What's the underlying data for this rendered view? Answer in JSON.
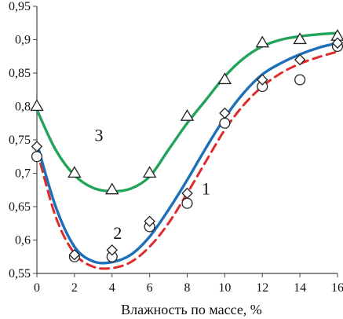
{
  "chart_data": {
    "type": "scatter",
    "xlabel": "Влажность по массе, %",
    "ylabel": "",
    "xlim": [
      0,
      16
    ],
    "ylim": [
      0.55,
      0.95
    ],
    "x_ticks": [
      "0",
      "2",
      "4",
      "6",
      "8",
      "10",
      "12",
      "14",
      "16"
    ],
    "y_ticks": [
      "0,55",
      "0,6",
      "0,65",
      "0,7",
      "0,75",
      "0,8",
      "0,85",
      "0,9",
      "0,95"
    ],
    "grid": false,
    "curve_labels": [
      "3",
      "2",
      "1"
    ],
    "series": [
      {
        "label": "3",
        "marker": "triangle",
        "line_color": "#22a35a",
        "line_style": "solid",
        "points": [
          {
            "x": 0,
            "y": 0.8
          },
          {
            "x": 2,
            "y": 0.7
          },
          {
            "x": 4,
            "y": 0.675
          },
          {
            "x": 6,
            "y": 0.7
          },
          {
            "x": 8,
            "y": 0.785
          },
          {
            "x": 10,
            "y": 0.84
          },
          {
            "x": 12,
            "y": 0.895
          },
          {
            "x": 14,
            "y": 0.9
          },
          {
            "x": 16,
            "y": 0.905
          }
        ],
        "curve": [
          {
            "x": 0,
            "y": 0.795
          },
          {
            "x": 1,
            "y": 0.735
          },
          {
            "x": 2,
            "y": 0.697
          },
          {
            "x": 3,
            "y": 0.678
          },
          {
            "x": 4,
            "y": 0.673
          },
          {
            "x": 5,
            "y": 0.677
          },
          {
            "x": 6,
            "y": 0.695
          },
          {
            "x": 7,
            "y": 0.735
          },
          {
            "x": 8,
            "y": 0.775
          },
          {
            "x": 9,
            "y": 0.81
          },
          {
            "x": 10,
            "y": 0.845
          },
          {
            "x": 11,
            "y": 0.872
          },
          {
            "x": 12,
            "y": 0.89
          },
          {
            "x": 13,
            "y": 0.9
          },
          {
            "x": 14,
            "y": 0.905
          },
          {
            "x": 15,
            "y": 0.908
          },
          {
            "x": 16,
            "y": 0.91
          }
        ]
      },
      {
        "label": "2",
        "marker": "diamond",
        "line_color": "#1f6fb8",
        "line_style": "solid",
        "points": [
          {
            "x": 0,
            "y": 0.74
          },
          {
            "x": 2,
            "y": 0.578
          },
          {
            "x": 4,
            "y": 0.585
          },
          {
            "x": 6,
            "y": 0.628
          },
          {
            "x": 8,
            "y": 0.67
          },
          {
            "x": 10,
            "y": 0.79
          },
          {
            "x": 12,
            "y": 0.84
          },
          {
            "x": 14,
            "y": 0.87
          },
          {
            "x": 16,
            "y": 0.895
          }
        ],
        "curve": [
          {
            "x": 0,
            "y": 0.745
          },
          {
            "x": 1,
            "y": 0.65
          },
          {
            "x": 2,
            "y": 0.59
          },
          {
            "x": 3,
            "y": 0.568
          },
          {
            "x": 4,
            "y": 0.567
          },
          {
            "x": 5,
            "y": 0.578
          },
          {
            "x": 6,
            "y": 0.605
          },
          {
            "x": 7,
            "y": 0.645
          },
          {
            "x": 8,
            "y": 0.69
          },
          {
            "x": 9,
            "y": 0.738
          },
          {
            "x": 10,
            "y": 0.783
          },
          {
            "x": 11,
            "y": 0.82
          },
          {
            "x": 12,
            "y": 0.848
          },
          {
            "x": 13,
            "y": 0.865
          },
          {
            "x": 14,
            "y": 0.878
          },
          {
            "x": 15,
            "y": 0.888
          },
          {
            "x": 16,
            "y": 0.895
          }
        ]
      },
      {
        "label": "1",
        "marker": "circle",
        "line_color": "#e02b2b",
        "line_style": "dashed",
        "points": [
          {
            "x": 0,
            "y": 0.725
          },
          {
            "x": 2,
            "y": 0.575
          },
          {
            "x": 4,
            "y": 0.575
          },
          {
            "x": 6,
            "y": 0.62
          },
          {
            "x": 8,
            "y": 0.655
          },
          {
            "x": 10,
            "y": 0.775
          },
          {
            "x": 12,
            "y": 0.83
          },
          {
            "x": 14,
            "y": 0.84
          },
          {
            "x": 16,
            "y": 0.89
          }
        ],
        "curve": [
          {
            "x": 0,
            "y": 0.735
          },
          {
            "x": 1,
            "y": 0.635
          },
          {
            "x": 2,
            "y": 0.58
          },
          {
            "x": 3,
            "y": 0.56
          },
          {
            "x": 4,
            "y": 0.558
          },
          {
            "x": 5,
            "y": 0.567
          },
          {
            "x": 6,
            "y": 0.59
          },
          {
            "x": 7,
            "y": 0.625
          },
          {
            "x": 8,
            "y": 0.67
          },
          {
            "x": 9,
            "y": 0.718
          },
          {
            "x": 10,
            "y": 0.765
          },
          {
            "x": 11,
            "y": 0.802
          },
          {
            "x": 12,
            "y": 0.83
          },
          {
            "x": 13,
            "y": 0.85
          },
          {
            "x": 14,
            "y": 0.864
          },
          {
            "x": 15,
            "y": 0.874
          },
          {
            "x": 16,
            "y": 0.882
          }
        ]
      }
    ]
  }
}
